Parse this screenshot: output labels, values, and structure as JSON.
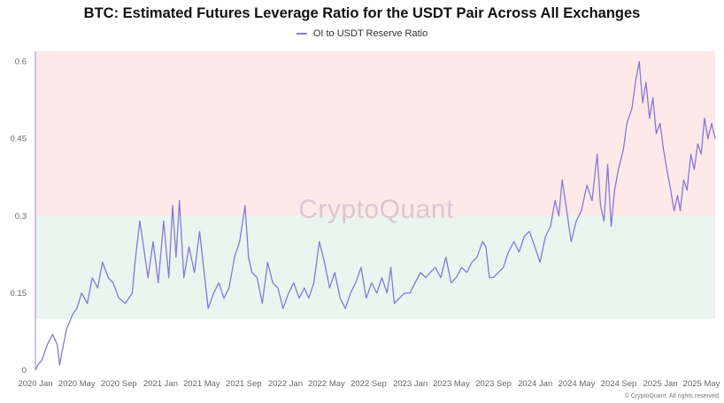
{
  "chart_data": {
    "type": "line",
    "title": "BTC: Estimated Futures Leverage Ratio for the USDT Pair Across All Exchanges",
    "series": [
      {
        "name": "OI to USDT Reserve Ratio",
        "color": "#8878d8",
        "points": [
          [
            "2020-01-01",
            0.0
          ],
          [
            "2020-01-08",
            0.01
          ],
          [
            "2020-01-20",
            0.02
          ],
          [
            "2020-02-05",
            0.05
          ],
          [
            "2020-02-20",
            0.07
          ],
          [
            "2020-03-05",
            0.05
          ],
          [
            "2020-03-12",
            0.01
          ],
          [
            "2020-03-20",
            0.04
          ],
          [
            "2020-04-01",
            0.08
          ],
          [
            "2020-04-20",
            0.11
          ],
          [
            "2020-05-01",
            0.12
          ],
          [
            "2020-05-15",
            0.15
          ],
          [
            "2020-06-01",
            0.13
          ],
          [
            "2020-06-15",
            0.18
          ],
          [
            "2020-07-01",
            0.16
          ],
          [
            "2020-07-15",
            0.21
          ],
          [
            "2020-08-01",
            0.18
          ],
          [
            "2020-08-15",
            0.17
          ],
          [
            "2020-09-01",
            0.14
          ],
          [
            "2020-09-20",
            0.13
          ],
          [
            "2020-10-10",
            0.15
          ],
          [
            "2020-10-20",
            0.22
          ],
          [
            "2020-11-01",
            0.29
          ],
          [
            "2020-11-10",
            0.25
          ],
          [
            "2020-11-25",
            0.18
          ],
          [
            "2020-12-10",
            0.25
          ],
          [
            "2020-12-25",
            0.17
          ],
          [
            "2021-01-10",
            0.29
          ],
          [
            "2021-01-25",
            0.18
          ],
          [
            "2021-02-05",
            0.32
          ],
          [
            "2021-02-15",
            0.22
          ],
          [
            "2021-02-25",
            0.33
          ],
          [
            "2021-03-10",
            0.18
          ],
          [
            "2021-03-25",
            0.24
          ],
          [
            "2021-04-10",
            0.19
          ],
          [
            "2021-04-25",
            0.27
          ],
          [
            "2021-05-10",
            0.18
          ],
          [
            "2021-05-20",
            0.12
          ],
          [
            "2021-06-05",
            0.15
          ],
          [
            "2021-06-20",
            0.17
          ],
          [
            "2021-07-05",
            0.14
          ],
          [
            "2021-07-20",
            0.16
          ],
          [
            "2021-08-05",
            0.22
          ],
          [
            "2021-08-20",
            0.25
          ],
          [
            "2021-09-05",
            0.32
          ],
          [
            "2021-09-15",
            0.22
          ],
          [
            "2021-09-25",
            0.19
          ],
          [
            "2021-10-10",
            0.18
          ],
          [
            "2021-10-25",
            0.13
          ],
          [
            "2021-11-10",
            0.21
          ],
          [
            "2021-11-25",
            0.17
          ],
          [
            "2021-12-10",
            0.16
          ],
          [
            "2021-12-25",
            0.12
          ],
          [
            "2022-01-10",
            0.15
          ],
          [
            "2022-01-25",
            0.17
          ],
          [
            "2022-02-10",
            0.14
          ],
          [
            "2022-02-25",
            0.16
          ],
          [
            "2022-03-10",
            0.14
          ],
          [
            "2022-03-25",
            0.17
          ],
          [
            "2022-04-10",
            0.25
          ],
          [
            "2022-04-25",
            0.21
          ],
          [
            "2022-05-10",
            0.16
          ],
          [
            "2022-05-25",
            0.19
          ],
          [
            "2022-06-10",
            0.14
          ],
          [
            "2022-06-25",
            0.12
          ],
          [
            "2022-07-10",
            0.15
          ],
          [
            "2022-07-25",
            0.17
          ],
          [
            "2022-08-10",
            0.2
          ],
          [
            "2022-08-25",
            0.14
          ],
          [
            "2022-09-10",
            0.17
          ],
          [
            "2022-09-25",
            0.15
          ],
          [
            "2022-10-10",
            0.18
          ],
          [
            "2022-10-25",
            0.15
          ],
          [
            "2022-11-05",
            0.2
          ],
          [
            "2022-11-15",
            0.13
          ],
          [
            "2022-11-30",
            0.14
          ],
          [
            "2022-12-15",
            0.15
          ],
          [
            "2022-12-31",
            0.15
          ],
          [
            "2023-01-15",
            0.17
          ],
          [
            "2023-01-31",
            0.19
          ],
          [
            "2023-02-15",
            0.18
          ],
          [
            "2023-02-28",
            0.19
          ],
          [
            "2023-03-15",
            0.2
          ],
          [
            "2023-03-31",
            0.18
          ],
          [
            "2023-04-15",
            0.22
          ],
          [
            "2023-04-30",
            0.17
          ],
          [
            "2023-05-15",
            0.18
          ],
          [
            "2023-05-31",
            0.2
          ],
          [
            "2023-06-15",
            0.19
          ],
          [
            "2023-06-30",
            0.21
          ],
          [
            "2023-07-15",
            0.22
          ],
          [
            "2023-07-31",
            0.25
          ],
          [
            "2023-08-10",
            0.24
          ],
          [
            "2023-08-20",
            0.18
          ],
          [
            "2023-08-31",
            0.18
          ],
          [
            "2023-09-15",
            0.19
          ],
          [
            "2023-09-30",
            0.2
          ],
          [
            "2023-10-15",
            0.23
          ],
          [
            "2023-10-31",
            0.25
          ],
          [
            "2023-11-15",
            0.23
          ],
          [
            "2023-11-30",
            0.26
          ],
          [
            "2023-12-15",
            0.27
          ],
          [
            "2023-12-31",
            0.24
          ],
          [
            "2024-01-15",
            0.21
          ],
          [
            "2024-01-31",
            0.26
          ],
          [
            "2024-02-15",
            0.28
          ],
          [
            "2024-02-28",
            0.33
          ],
          [
            "2024-03-10",
            0.3
          ],
          [
            "2024-03-20",
            0.37
          ],
          [
            "2024-03-31",
            0.32
          ],
          [
            "2024-04-15",
            0.25
          ],
          [
            "2024-04-30",
            0.29
          ],
          [
            "2024-05-15",
            0.31
          ],
          [
            "2024-05-31",
            0.36
          ],
          [
            "2024-06-15",
            0.33
          ],
          [
            "2024-06-30",
            0.42
          ],
          [
            "2024-07-10",
            0.32
          ],
          [
            "2024-07-20",
            0.29
          ],
          [
            "2024-07-31",
            0.4
          ],
          [
            "2024-08-10",
            0.28
          ],
          [
            "2024-08-20",
            0.35
          ],
          [
            "2024-08-31",
            0.39
          ],
          [
            "2024-09-15",
            0.43
          ],
          [
            "2024-09-25",
            0.48
          ],
          [
            "2024-10-10",
            0.51
          ],
          [
            "2024-10-20",
            0.56
          ],
          [
            "2024-10-31",
            0.6
          ],
          [
            "2024-11-10",
            0.52
          ],
          [
            "2024-11-20",
            0.56
          ],
          [
            "2024-11-30",
            0.49
          ],
          [
            "2024-12-10",
            0.53
          ],
          [
            "2024-12-20",
            0.46
          ],
          [
            "2024-12-31",
            0.48
          ],
          [
            "2025-01-10",
            0.43
          ],
          [
            "2025-01-20",
            0.39
          ],
          [
            "2025-01-31",
            0.35
          ],
          [
            "2025-02-10",
            0.31
          ],
          [
            "2025-02-20",
            0.34
          ],
          [
            "2025-02-28",
            0.31
          ],
          [
            "2025-03-10",
            0.37
          ],
          [
            "2025-03-20",
            0.35
          ],
          [
            "2025-03-31",
            0.42
          ],
          [
            "2025-04-10",
            0.39
          ],
          [
            "2025-04-20",
            0.44
          ],
          [
            "2025-04-30",
            0.42
          ],
          [
            "2025-05-10",
            0.49
          ],
          [
            "2025-05-20",
            0.45
          ],
          [
            "2025-05-31",
            0.48
          ],
          [
            "2025-06-10",
            0.45
          ]
        ]
      }
    ],
    "x_ticks": [
      "2020 Jan",
      "2020 May",
      "2020 Sep",
      "2021 Jan",
      "2021 May",
      "2021 Sep",
      "2022 Jan",
      "2022 May",
      "2022 Sep",
      "2023 Jan",
      "2023 May",
      "2023 Sep",
      "2024 Jan",
      "2024 May",
      "2024 Sep",
      "2025 Jan",
      "2025 May"
    ],
    "y_ticks": [
      "0",
      "0.15",
      "0.3",
      "0.45",
      "0.6"
    ],
    "ylim": [
      0,
      0.62
    ],
    "xlim": [
      "2020-01-01",
      "2025-06-10"
    ],
    "bands": [
      {
        "from": 0.1,
        "to": 0.3,
        "color": "#e9f5ee"
      },
      {
        "from": 0.3,
        "to": 0.62,
        "color": "#fce9e8"
      }
    ],
    "legend_position": "top-center",
    "grid": false
  },
  "watermark": "CryptoQuant",
  "credit": "© CryptoQuant. All rights reserved"
}
